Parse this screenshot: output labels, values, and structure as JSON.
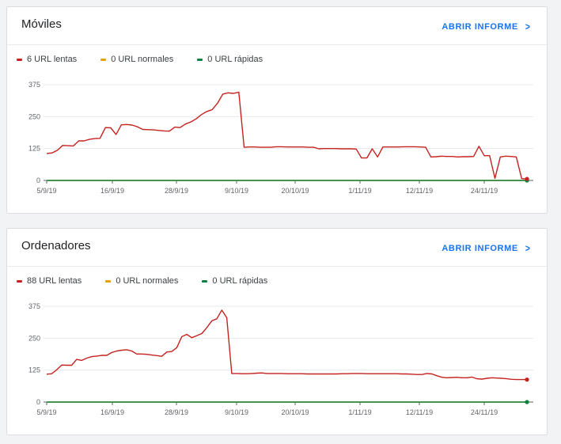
{
  "cards": [
    {
      "title": "Móviles",
      "open_report": "ABRIR INFORME",
      "legend": [
        {
          "label": "6 URL lentas",
          "color": "#c5221f"
        },
        {
          "label": "0 URL normales",
          "color": "#e8a100"
        },
        {
          "label": "0 URL rápidas",
          "color": "#0d8043"
        }
      ]
    },
    {
      "title": "Ordenadores",
      "open_report": "ABRIR INFORME",
      "legend": [
        {
          "label": "88 URL lentas",
          "color": "#c5221f"
        },
        {
          "label": "0 URL normales",
          "color": "#e8a100"
        },
        {
          "label": "0 URL rápidas",
          "color": "#0d8043"
        }
      ]
    }
  ],
  "chart_data": [
    {
      "type": "line",
      "ylim": [
        0,
        375
      ],
      "yticks": [
        0,
        125,
        250,
        375
      ],
      "x_ticks": [
        "5/9/19",
        "16/9/19",
        "28/9/19",
        "9/10/19",
        "20/10/19",
        "1/11/19",
        "12/11/19",
        "24/11/19"
      ],
      "series": [
        {
          "name": "6 URL lentas",
          "color": "#c5221f",
          "values": [
            105,
            108,
            118,
            137,
            136,
            135,
            155,
            155,
            161,
            164,
            165,
            207,
            206,
            180,
            218,
            219,
            217,
            210,
            200,
            199,
            198,
            196,
            194,
            193,
            209,
            207,
            221,
            229,
            241,
            258,
            270,
            277,
            302,
            338,
            343,
            341,
            346,
            130,
            131,
            131,
            130,
            130,
            130,
            132,
            132,
            131,
            131,
            131,
            131,
            130,
            130,
            124,
            125,
            125,
            125,
            124,
            124,
            124,
            123,
            88,
            88,
            124,
            92,
            131,
            131,
            131,
            131,
            132,
            132,
            132,
            131,
            130,
            92,
            93,
            95,
            94,
            94,
            92,
            93,
            93,
            94,
            134,
            97,
            97,
            8,
            92,
            95,
            94,
            92,
            7,
            6
          ]
        },
        {
          "name": "0 URL normales",
          "color": "#e8a100",
          "values": [
            0,
            0
          ]
        },
        {
          "name": "0 URL rápidas",
          "color": "#0d8043",
          "values": [
            0,
            0
          ]
        }
      ]
    },
    {
      "type": "line",
      "ylim": [
        0,
        375
      ],
      "yticks": [
        0,
        125,
        250,
        375
      ],
      "x_ticks": [
        "5/9/19",
        "16/9/19",
        "28/9/19",
        "9/10/19",
        "20/10/19",
        "1/11/19",
        "12/11/19",
        "24/11/19"
      ],
      "series": [
        {
          "name": "88 URL lentas",
          "color": "#c5221f",
          "values": [
            109,
            111,
            126,
            145,
            144,
            144,
            167,
            163,
            172,
            178,
            180,
            183,
            183,
            194,
            200,
            203,
            205,
            200,
            188,
            188,
            187,
            184,
            182,
            179,
            196,
            198,
            213,
            256,
            265,
            252,
            260,
            268,
            291,
            318,
            326,
            360,
            330,
            112,
            112,
            111,
            111,
            112,
            113,
            114,
            112,
            112,
            112,
            112,
            111,
            111,
            111,
            111,
            110,
            110,
            110,
            110,
            110,
            110,
            110,
            111,
            111,
            112,
            112,
            112,
            111,
            111,
            111,
            111,
            111,
            111,
            111,
            110,
            110,
            109,
            108,
            108,
            112,
            110,
            103,
            97,
            95,
            96,
            97,
            95,
            95,
            98,
            91,
            90,
            93,
            95,
            94,
            93,
            91,
            89,
            88,
            88,
            88
          ]
        },
        {
          "name": "0 URL normales",
          "color": "#e8a100",
          "values": [
            0,
            0
          ]
        },
        {
          "name": "0 URL rápidas",
          "color": "#0d8043",
          "values": [
            0,
            0
          ]
        }
      ]
    }
  ]
}
